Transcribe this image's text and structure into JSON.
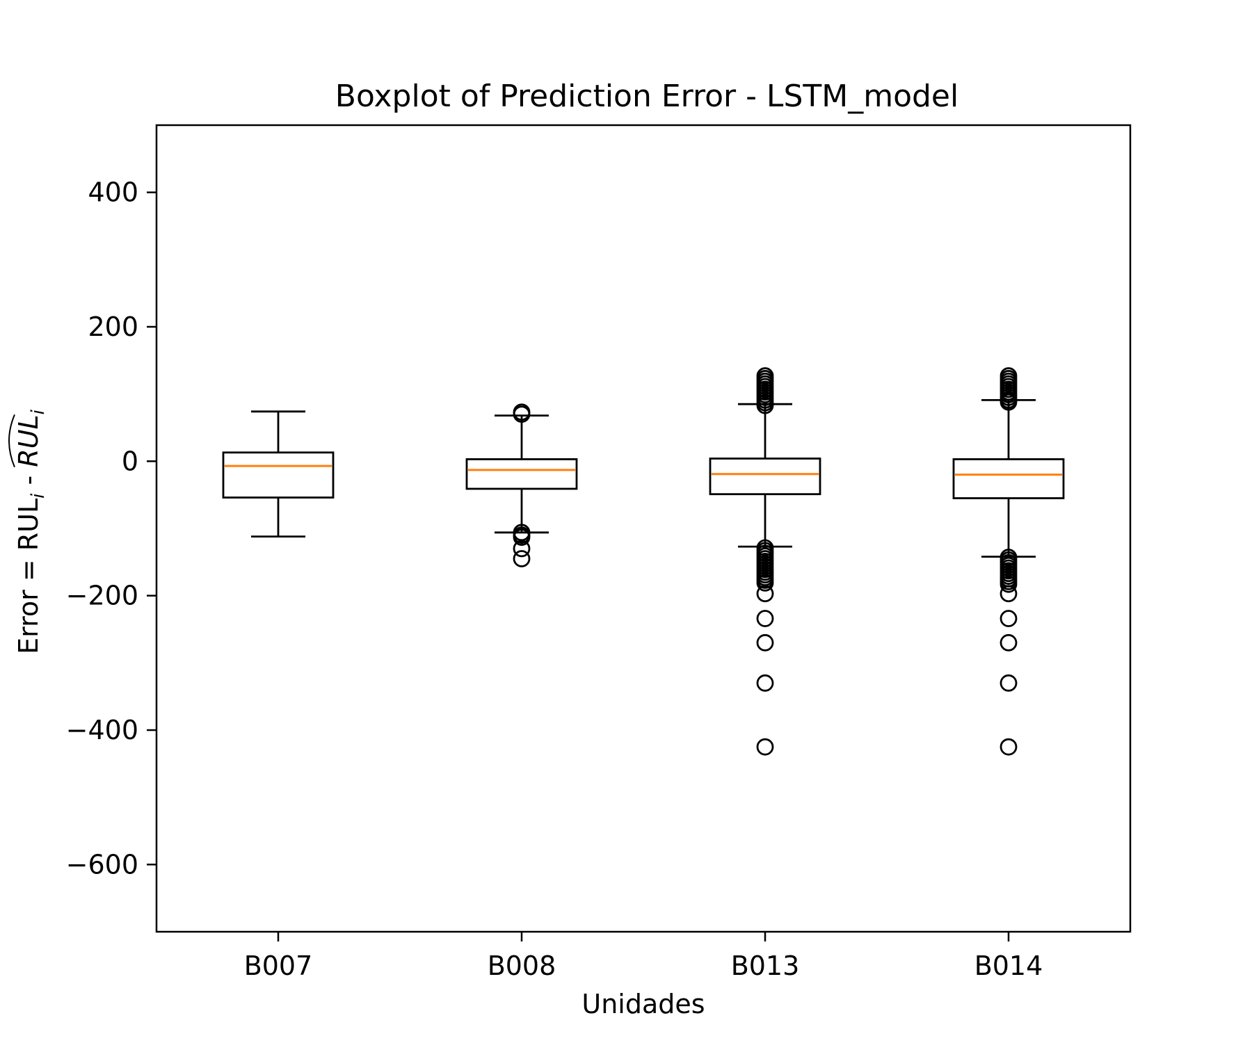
{
  "chart_data": {
    "type": "boxplot",
    "title": "Boxplot of Prediction Error - LSTM_model",
    "xlabel": "Unidades",
    "ylabel": {
      "prefix": "Error = RUL",
      "sub": "i",
      "sep": " - ",
      "hat": "RUL",
      "hat_sub": "i"
    },
    "ylim": [
      -700,
      500
    ],
    "yticks": [
      400,
      200,
      0,
      -200,
      -400,
      -600
    ],
    "ytick_labels": [
      "400",
      "200",
      "0",
      "−200",
      "−400",
      "−600"
    ],
    "categories": [
      "B007",
      "B008",
      "B013",
      "B014"
    ],
    "boxes": [
      {
        "name": "B007",
        "whisker_low": -112,
        "q1": -54,
        "median": -7,
        "q3": 13,
        "whisker_high": 74,
        "outliers": []
      },
      {
        "name": "B008",
        "whisker_low": -106,
        "q1": -41,
        "median": -13,
        "q3": 3,
        "whisker_high": 68,
        "outliers": [
          73,
          70,
          -106,
          -110,
          -113,
          -130,
          -145
        ]
      },
      {
        "name": "B013",
        "whisker_low": -127,
        "q1": -49,
        "median": -19,
        "q3": 4,
        "whisker_high": 85,
        "outliers": [
          127,
          123,
          119,
          115,
          111,
          107,
          103,
          99,
          95,
          91,
          87,
          83,
          -129,
          -133,
          -137,
          -141,
          -145,
          -149,
          -153,
          -157,
          -161,
          -165,
          -169,
          -173,
          -177,
          -181,
          -197,
          -234,
          -270,
          -330,
          -425
        ]
      },
      {
        "name": "B014",
        "whisker_low": -142,
        "q1": -55,
        "median": -20,
        "q3": 3,
        "whisker_high": 91,
        "outliers": [
          127,
          123,
          119,
          115,
          111,
          107,
          103,
          99,
          95,
          91,
          88,
          -143,
          -147,
          -151,
          -155,
          -159,
          -163,
          -167,
          -171,
          -175,
          -179,
          -183,
          -197,
          -234,
          -270,
          -330,
          -425
        ]
      }
    ],
    "colors": {
      "box": "#000000",
      "median": "#ff7f0e",
      "background": "#ffffff"
    }
  }
}
